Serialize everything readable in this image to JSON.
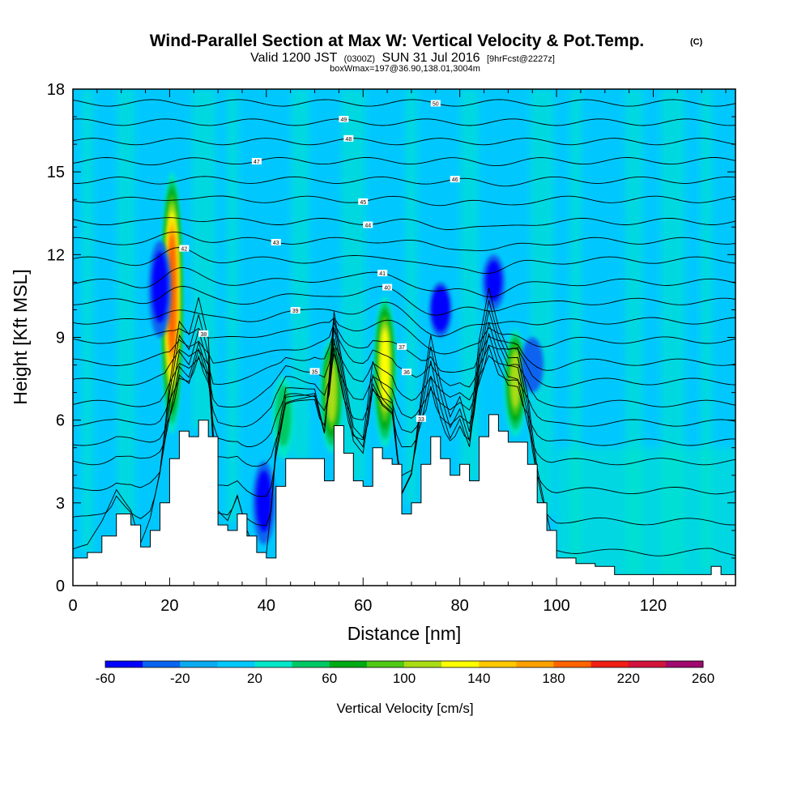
{
  "chart_data": {
    "type": "heatmap",
    "title": "Wind-Parallel Section at Max W: Vertical Velocity & Pot.Temp.",
    "title_mark": "(C)",
    "subtitle": {
      "valid_prefix": "Valid 1200 JST",
      "utc": "(0300Z)",
      "date": "SUN 31 Jul 2016",
      "forecast": "[9hrFcst@2227z]"
    },
    "box_note": "boxWmax=197@36.90,138.01,3004m",
    "xlabel": "Distance [nm]",
    "ylabel": "Height [Kft MSL]",
    "xlim": [
      0,
      137
    ],
    "ylim": [
      0,
      18
    ],
    "xticks": [
      "0",
      "20",
      "40",
      "60",
      "80",
      "100",
      "120"
    ],
    "yticks": [
      "0",
      "3",
      "6",
      "9",
      "12",
      "15",
      "18"
    ],
    "colorbar": {
      "label": "Vertical Velocity [cm/s]",
      "ticks": [
        "-60",
        "-20",
        "20",
        "60",
        "100",
        "140",
        "180",
        "220",
        "260"
      ],
      "levels": [
        -60,
        -40,
        -20,
        0,
        20,
        40,
        60,
        80,
        100,
        120,
        140,
        160,
        180,
        200,
        220,
        240,
        260
      ],
      "colors": [
        "#0000ff",
        "#0a64f0",
        "#0aaaf0",
        "#00c8ff",
        "#00e6c8",
        "#00c864",
        "#00aa14",
        "#50c814",
        "#aadc14",
        "#ffff00",
        "#ffc800",
        "#ffa000",
        "#ff6400",
        "#f01e14",
        "#d2143c",
        "#a00a6e",
        "#6e0a96"
      ]
    },
    "updrafts": [
      {
        "x": 20.5,
        "base": 5.5,
        "top": 15.0,
        "peak": 197
      },
      {
        "x": 43.5,
        "base": 4.6,
        "top": 7.6,
        "peak": 50
      },
      {
        "x": 53.5,
        "base": 4.8,
        "top": 9.0,
        "peak": 110
      },
      {
        "x": 64.5,
        "base": 5.0,
        "top": 10.5,
        "peak": 120
      },
      {
        "x": 91.5,
        "base": 5.4,
        "top": 9.3,
        "peak": 100
      }
    ],
    "downdrafts": [
      {
        "x": 18.0,
        "base": 9.0,
        "top": 12.5,
        "peak": -50
      },
      {
        "x": 76.0,
        "base": 9.0,
        "top": 11.0,
        "peak": -60
      },
      {
        "x": 87.0,
        "base": 10.0,
        "top": 12.0,
        "peak": -55
      },
      {
        "x": 39.5,
        "base": 1.5,
        "top": 4.5,
        "peak": -40
      },
      {
        "x": 95.0,
        "base": 7.0,
        "top": 9.0,
        "peak": -35
      }
    ],
    "terrain": {
      "x": [
        0,
        3,
        6,
        9,
        12,
        14,
        16,
        18,
        20,
        22,
        24,
        26,
        28,
        30,
        32,
        34,
        36,
        38,
        40,
        42,
        44,
        46,
        48,
        50,
        52,
        54,
        56,
        58,
        60,
        62,
        64,
        66,
        68,
        70,
        72,
        74,
        76,
        78,
        80,
        82,
        84,
        86,
        88,
        90,
        92,
        94,
        96,
        98,
        100,
        104,
        108,
        112,
        116,
        120,
        124,
        128,
        132,
        134,
        137
      ],
      "height": [
        1.0,
        1.2,
        1.8,
        2.6,
        2.2,
        1.4,
        2.0,
        3.0,
        4.6,
        5.6,
        5.4,
        6.0,
        5.4,
        2.2,
        2.0,
        2.6,
        1.8,
        1.2,
        1.0,
        3.6,
        4.6,
        4.6,
        4.6,
        4.6,
        3.8,
        5.8,
        4.8,
        3.8,
        3.6,
        5.0,
        4.6,
        4.4,
        2.6,
        3.0,
        4.4,
        5.4,
        4.6,
        4.0,
        4.4,
        3.8,
        5.4,
        6.2,
        5.6,
        5.2,
        5.2,
        4.4,
        3.0,
        2.0,
        1.0,
        0.8,
        0.7,
        0.4,
        0.4,
        0.4,
        0.4,
        0.4,
        0.7,
        0.4,
        0.3
      ]
    },
    "theta_contours": [
      {
        "z": 1.5,
        "label": ""
      },
      {
        "z": 2.5,
        "label": ""
      },
      {
        "z": 3.5,
        "label": ""
      },
      {
        "z": 4.5,
        "label": ""
      },
      {
        "z": 5.2,
        "label": "33"
      },
      {
        "z": 5.9,
        "label": ""
      },
      {
        "z": 6.6,
        "label": "35"
      },
      {
        "z": 7.4,
        "label": "36"
      },
      {
        "z": 8.1,
        "label": "37"
      },
      {
        "z": 8.9,
        "label": "38"
      },
      {
        "z": 9.6,
        "label": "39"
      },
      {
        "z": 10.3,
        "label": "40"
      },
      {
        "z": 11.0,
        "label": "41"
      },
      {
        "z": 11.8,
        "label": "42"
      },
      {
        "z": 12.5,
        "label": "43"
      },
      {
        "z": 13.2,
        "label": "44"
      },
      {
        "z": 14.0,
        "label": "45"
      },
      {
        "z": 14.7,
        "label": "46"
      },
      {
        "z": 15.4,
        "label": "47"
      },
      {
        "z": 16.1,
        "label": "48"
      },
      {
        "z": 16.8,
        "label": "49"
      },
      {
        "z": 17.5,
        "label": "50"
      }
    ]
  }
}
